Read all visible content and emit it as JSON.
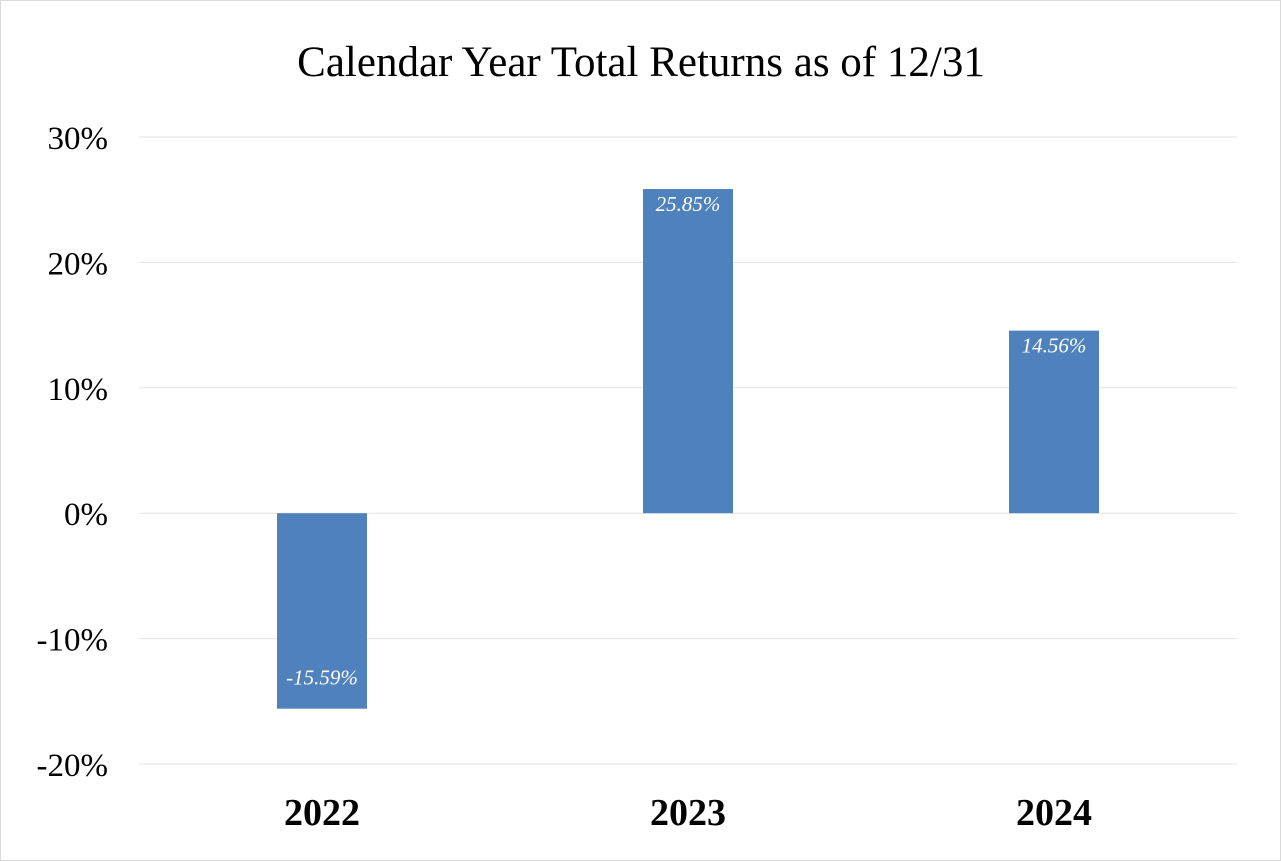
{
  "chart_data": {
    "type": "bar",
    "title": "Calendar Year Total Returns as of 12/31",
    "categories": [
      "2022",
      "2023",
      "2024"
    ],
    "values": [
      -15.59,
      25.85,
      14.56
    ],
    "data_labels": [
      "-15.59%",
      "25.85%",
      "14.56%"
    ],
    "ylim": [
      -20,
      30
    ],
    "y_ticks": [
      30,
      20,
      10,
      0,
      -10,
      -20
    ],
    "y_tick_labels": [
      "30%",
      "20%",
      "10%",
      "0%",
      "-10%",
      "-20%"
    ],
    "xlabel": "",
    "ylabel": "",
    "grid": true,
    "legend": "none",
    "colors": {
      "bar": "#4F81BD",
      "grid": "#e3e3e3",
      "data_label": "#ffffff"
    }
  }
}
